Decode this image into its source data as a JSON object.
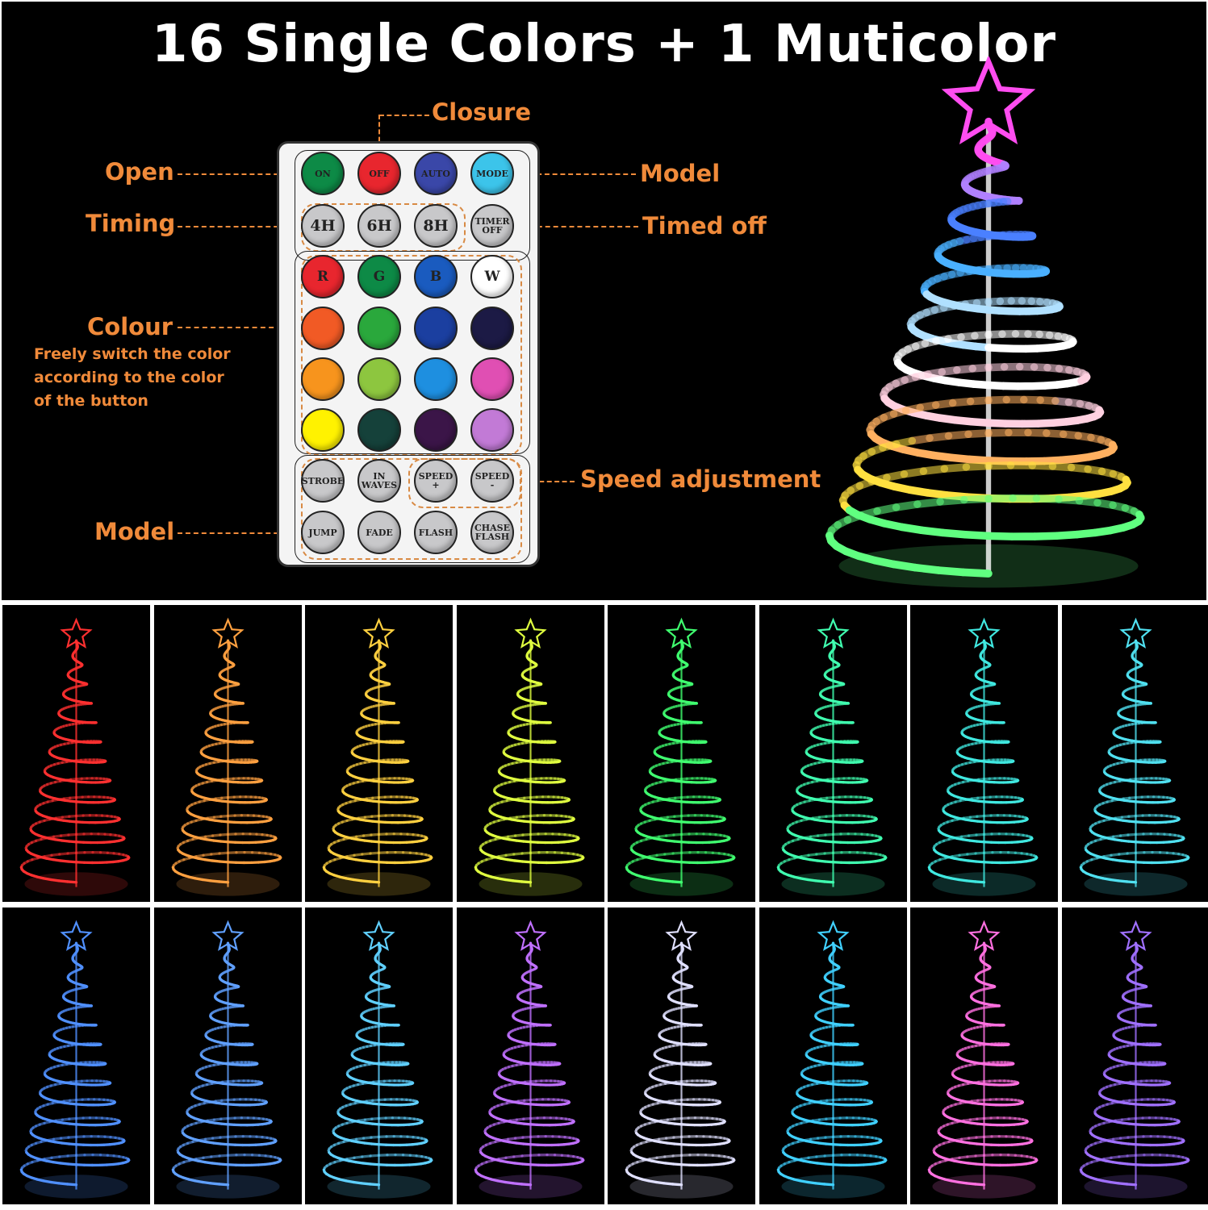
{
  "title": "16 Single Colors + 1 Muticolor",
  "labels": {
    "closure": "Closure",
    "open": "Open",
    "model_top": "Model",
    "timing": "Timing",
    "timed_off": "Timed off",
    "colour": "Colour",
    "colour_desc": [
      "Freely switch the color",
      "according to the color",
      "of the button"
    ],
    "speed_adjustment": "Speed adjustment",
    "model_bottom": "Model"
  },
  "remote": {
    "rows": [
      [
        {
          "t": "ON",
          "c": "#0d8a46"
        },
        {
          "t": "OFF",
          "c": "#e8262e"
        },
        {
          "t": "AUTO",
          "c": "#3a47a8"
        },
        {
          "t": "MODE",
          "c": "#3cc4ea"
        }
      ],
      [
        {
          "t": "4H",
          "c": "#c8c8ca"
        },
        {
          "t": "6H",
          "c": "#c8c8ca"
        },
        {
          "t": "8H",
          "c": "#c8c8ca"
        },
        {
          "t": "TIMER OFF",
          "c": "#c8c8ca"
        }
      ],
      [
        {
          "t": "R",
          "c": "#e8262e"
        },
        {
          "t": "G",
          "c": "#0d8a46"
        },
        {
          "t": "B",
          "c": "#1a5bbf"
        },
        {
          "t": "W",
          "c": "#ffffff"
        }
      ],
      [
        {
          "t": "",
          "c": "#f15a25"
        },
        {
          "t": "",
          "c": "#2aa83c"
        },
        {
          "t": "",
          "c": "#1b3fa0"
        },
        {
          "t": "",
          "c": "#1c1a45"
        }
      ],
      [
        {
          "t": "",
          "c": "#f7941d"
        },
        {
          "t": "",
          "c": "#8dc63f"
        },
        {
          "t": "",
          "c": "#1e8fe0"
        },
        {
          "t": "",
          "c": "#e04fb3"
        }
      ],
      [
        {
          "t": "",
          "c": "#fff200"
        },
        {
          "t": "",
          "c": "#15413a"
        },
        {
          "t": "",
          "c": "#3b1548"
        },
        {
          "t": "",
          "c": "#c27ad6"
        }
      ],
      [
        {
          "t": "STROBE",
          "c": "#c8c8ca"
        },
        {
          "t": "IN WAVES",
          "c": "#c8c8ca"
        },
        {
          "t": "SPEED +",
          "c": "#c8c8ca"
        },
        {
          "t": "SPEED -",
          "c": "#c8c8ca"
        }
      ],
      [
        {
          "t": "JUMP",
          "c": "#c8c8ca"
        },
        {
          "t": "FADE",
          "c": "#c8c8ca"
        },
        {
          "t": "FLASH",
          "c": "#c8c8ca"
        },
        {
          "t": "CHASE FLASH",
          "c": "#c8c8ca"
        }
      ]
    ]
  },
  "multicolor_tree_colors": [
    "#ff4df0",
    "#b080ff",
    "#4a80ff",
    "#4ab0ff",
    "#b0e0ff",
    "#ffffff",
    "#ffd0e0",
    "#ffb060",
    "#ffe040",
    "#60ff80"
  ],
  "tree_colors": [
    "#ff3030",
    "#ffa040",
    "#ffd040",
    "#e0ff40",
    "#40ff70",
    "#40ffb0",
    "#40e8e0",
    "#50e0f0",
    "#5090ff",
    "#60a0ff",
    "#60d0ff",
    "#c070ff",
    "#e0e0ff",
    "#40d0ff",
    "#ff70e0",
    "#a070ff"
  ],
  "accent": "#f08a3a"
}
